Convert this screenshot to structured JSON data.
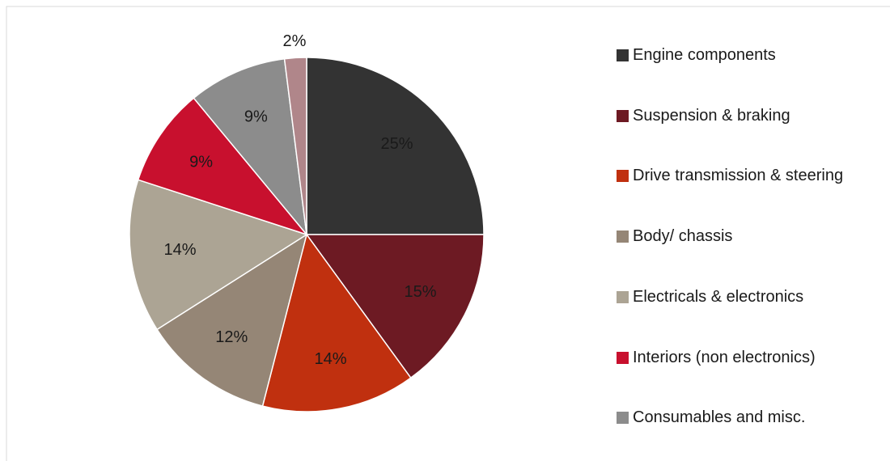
{
  "chart_data": {
    "type": "pie",
    "categories": [
      "Engine components",
      "Suspension & braking",
      "Drive transmission & steering",
      "Body/ chassis",
      "Electricals & electronics",
      "Interiors (non electronics)",
      "Consumables and misc.",
      null
    ],
    "values": [
      25,
      15,
      14,
      12,
      14,
      9,
      9,
      2
    ],
    "value_labels": [
      "25%",
      "15%",
      "14%",
      "12%",
      "14%",
      "9%",
      "9%",
      "2%"
    ],
    "colors": [
      "#333333",
      "#6d1a23",
      "#c0300f",
      "#958676",
      "#aca494",
      "#c8102e",
      "#8c8c8c",
      "#b0868a"
    ],
    "legend": "right"
  }
}
